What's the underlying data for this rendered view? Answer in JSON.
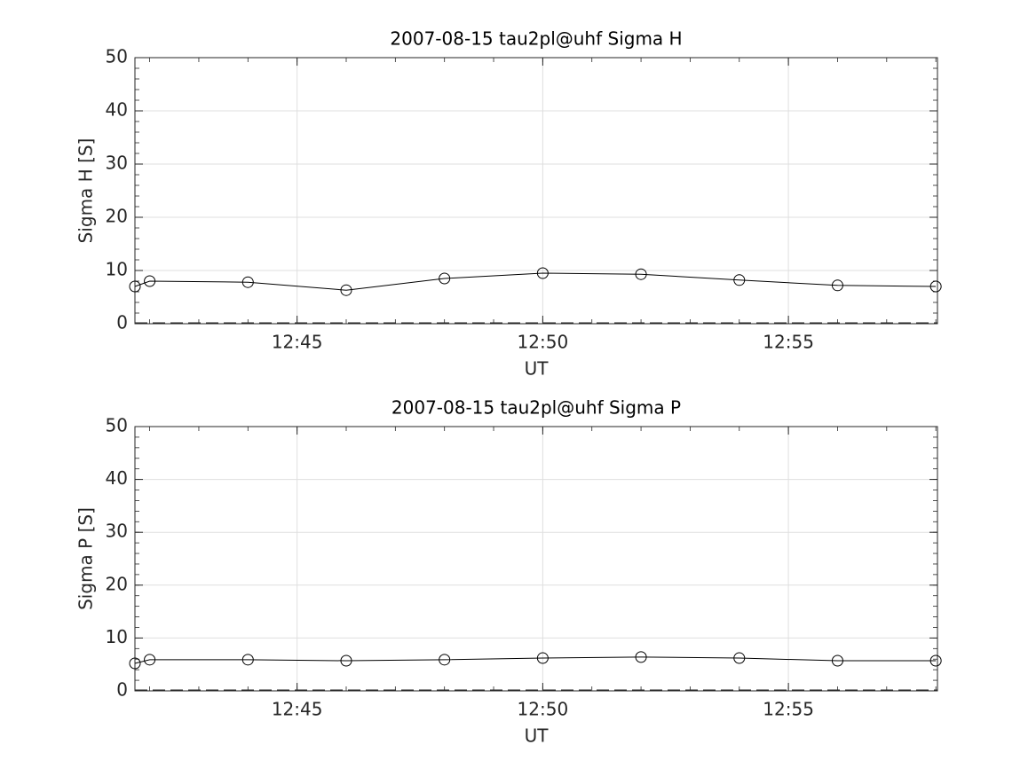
{
  "chart_data": [
    {
      "type": "line",
      "title": "2007-08-15  tau2pl@uhf Sigma H",
      "x_label": "UT",
      "y_label": "Sigma H [S]",
      "x": [
        "12:41:42",
        "12:42",
        "12:44",
        "12:46",
        "12:48",
        "12:50",
        "12:52",
        "12:54",
        "12:56",
        "12:58"
      ],
      "series": [
        {
          "color": "#000000",
          "values": [
            7.0,
            8.0,
            7.8,
            6.3,
            8.5,
            9.5,
            9.3,
            8.2,
            7.2,
            7.0
          ]
        }
      ],
      "xlim": [
        "12:41:42",
        "12:58:02"
      ],
      "xticks": [
        "12:45",
        "12:50",
        "12:55"
      ],
      "ylim": [
        0,
        50
      ],
      "yticks": [
        0,
        10,
        20,
        30,
        40,
        50
      ],
      "grid": true
    },
    {
      "type": "line",
      "title": "2007-08-15  tau2pl@uhf Sigma P",
      "x_label": "UT",
      "y_label": "Sigma P [S]",
      "x": [
        "12:41:42",
        "12:42",
        "12:44",
        "12:46",
        "12:48",
        "12:50",
        "12:52",
        "12:54",
        "12:56",
        "12:58"
      ],
      "series": [
        {
          "color": "#000000",
          "values": [
            5.2,
            5.9,
            5.9,
            5.7,
            5.9,
            6.2,
            6.4,
            6.2,
            5.7,
            5.7
          ]
        }
      ],
      "xlim": [
        "12:41:42",
        "12:58:02"
      ],
      "xticks": [
        "12:45",
        "12:50",
        "12:55"
      ],
      "ylim": [
        0,
        50
      ],
      "yticks": [
        0,
        10,
        20,
        30,
        40,
        50
      ],
      "grid": true
    }
  ]
}
